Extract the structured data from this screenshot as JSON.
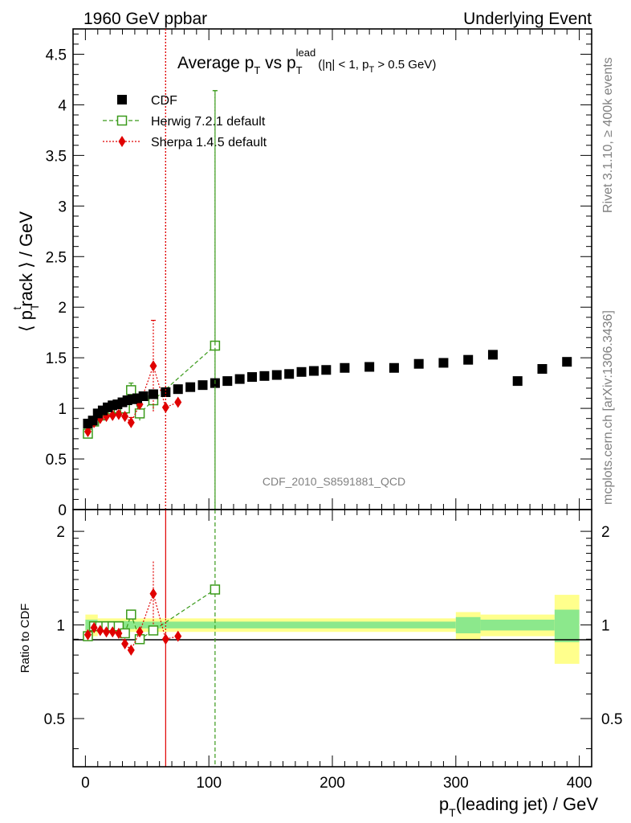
{
  "header": {
    "left": "1960 GeV ppbar",
    "right": "Underlying Event"
  },
  "plot_title": {
    "main": "Average p",
    "sub1": "T",
    "mid": " vs p",
    "sub2": "T",
    "sup2": "lead",
    "cut_a": "(|η| < 1, p",
    "cut_sub": "T",
    "cut_b": " > 0.5 GeV)"
  },
  "side_labels": {
    "rivet": "Rivet 3.1.10, ≥ 400k events",
    "mcplots": "mcplots.cern.ch [arXiv:1306.3436]"
  },
  "analysis_id": "CDF_2010_S8591881_QCD",
  "chart_data": [
    {
      "type": "scatter",
      "title": "Average pT vs pT lead (|η| < 1, pT > 0.5 GeV)",
      "ylabel": "⟨ p_T^track ⟩ / GeV",
      "xlim": [
        -10,
        410
      ],
      "ylim": [
        0,
        4.75
      ],
      "yticks": [
        "0",
        "0.5",
        "1",
        "1.5",
        "2",
        "2.5",
        "3",
        "3.5",
        "4",
        "4.5"
      ],
      "legend_position": "top-left",
      "series": [
        {
          "name": "CDF",
          "color": "#000000",
          "marker": "square-filled",
          "x": [
            2,
            6,
            10,
            14,
            18,
            22,
            26,
            30,
            34,
            38,
            42,
            47,
            55,
            65,
            75,
            85,
            95,
            105,
            115,
            125,
            135,
            145,
            155,
            165,
            175,
            185,
            195,
            210,
            230,
            250,
            270,
            290,
            310,
            330,
            350,
            370,
            390
          ],
          "y": [
            0.85,
            0.88,
            0.95,
            0.98,
            1.01,
            1.03,
            1.04,
            1.06,
            1.08,
            1.09,
            1.1,
            1.12,
            1.14,
            1.16,
            1.19,
            1.21,
            1.23,
            1.25,
            1.27,
            1.29,
            1.31,
            1.32,
            1.33,
            1.34,
            1.36,
            1.37,
            1.38,
            1.4,
            1.41,
            1.4,
            1.44,
            1.45,
            1.48,
            1.53,
            1.27,
            1.39,
            1.46
          ]
        },
        {
          "name": "Herwig 7.2.1 default",
          "color": "#3a9a1a",
          "marker": "square-open",
          "line": "dashed",
          "x": [
            2,
            7,
            12,
            17,
            22,
            27,
            32,
            37,
            44,
            55,
            105
          ],
          "y": [
            0.75,
            0.87,
            0.93,
            0.97,
            0.99,
            1.0,
            1.0,
            1.18,
            0.95,
            1.08,
            1.62
          ],
          "err": [
            0.03,
            0.03,
            0.03,
            0.03,
            0.03,
            0.04,
            0.05,
            0.07,
            0.07,
            0.09,
            2.52
          ]
        },
        {
          "name": "Sherpa 1.4.5 default",
          "color": "#e00000",
          "marker": "diamond",
          "line": "dotted",
          "x": [
            2,
            7,
            12,
            17,
            22,
            27,
            32,
            37,
            44,
            55,
            65,
            75
          ],
          "y": [
            0.77,
            0.86,
            0.9,
            0.92,
            0.93,
            0.94,
            0.92,
            0.86,
            1.04,
            1.42,
            1.01,
            1.06
          ],
          "err": [
            0.02,
            0.02,
            0.02,
            0.02,
            0.02,
            0.03,
            0.03,
            0.05,
            0.05,
            0.45,
            4.8,
            0.02
          ]
        }
      ]
    },
    {
      "type": "scatter",
      "xlabel": "p_T(leading jet) / GeV",
      "ylabel": "Ratio to CDF",
      "xlim": [
        -10,
        410
      ],
      "ylim": [
        0.35,
        2.35
      ],
      "xticks": [
        "0",
        "100",
        "200",
        "300",
        "400"
      ],
      "yticks": [
        "0.5",
        "1",
        "2"
      ],
      "log_y": true,
      "bands": [
        {
          "x0": 0,
          "x1": 10,
          "inner": 0.04,
          "outer": 0.08
        },
        {
          "x0": 10,
          "x1": 40,
          "inner": 0.03,
          "outer": 0.05
        },
        {
          "x0": 40,
          "x1": 300,
          "inner": 0.025,
          "outer": 0.05
        },
        {
          "x0": 300,
          "x1": 320,
          "inner": 0.06,
          "outer": 0.1
        },
        {
          "x0": 320,
          "x1": 380,
          "inner": 0.04,
          "outer": 0.08
        },
        {
          "x0": 380,
          "x1": 400,
          "inner": 0.12,
          "outer": 0.25
        }
      ],
      "series": [
        {
          "name": "Herwig 7.2.1 default",
          "color": "#3a9a1a",
          "marker": "square-open",
          "x": [
            2,
            7,
            12,
            17,
            22,
            27,
            32,
            37,
            44,
            55,
            105
          ],
          "y": [
            0.92,
            0.99,
            0.99,
            0.99,
            0.99,
            0.99,
            0.94,
            1.08,
            0.9,
            0.96,
            1.3
          ]
        },
        {
          "name": "Sherpa 1.4.5 default",
          "color": "#e00000",
          "marker": "diamond",
          "x": [
            2,
            7,
            12,
            17,
            22,
            27,
            32,
            37,
            44,
            55,
            65,
            75
          ],
          "y": [
            0.93,
            0.98,
            0.96,
            0.95,
            0.95,
            0.94,
            0.87,
            0.83,
            0.95,
            1.26,
            0.9,
            0.92
          ]
        }
      ]
    }
  ]
}
